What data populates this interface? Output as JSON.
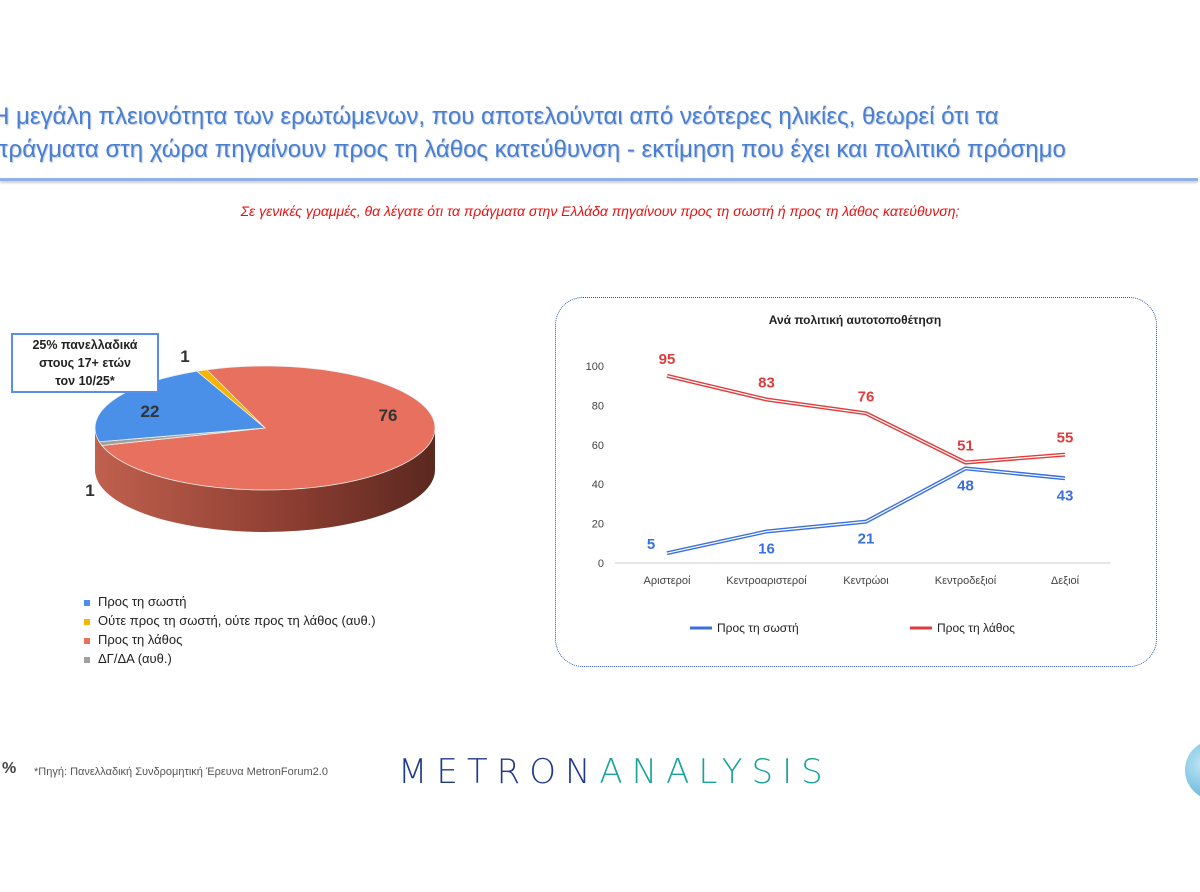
{
  "header": {
    "title_line1": "Η μεγάλη πλειονότητα των ερωτώμενων, που αποτελούνται από νεότερες ηλικίες, θεωρεί ότι τα",
    "title_line2": "πράγματα στη χώρα πηγαίνουν προς τη λάθος κατεύθυνση - εκτίμηση που έχει και πολιτικό πρόσημο",
    "question": "Σε γενικές γραμμές, θα λέγατε ότι τα πράγματα στην Ελλάδα πηγαίνουν προς τη σωστή ή προς τη λάθος κατεύθυνση;"
  },
  "annotation": {
    "line1": "25% πανελλαδικά",
    "line2": "στους 17+ ετών",
    "line3": "τον 10/25*"
  },
  "footer": {
    "source": "*Πηγή: Πανελλαδική Συνδρομητική Έρευνα MetronForum2.0",
    "logo_part1": "METRON",
    "logo_part2": "ANALYSIS",
    "icon": "percent-icon"
  },
  "chart_data": [
    {
      "type": "pie",
      "style": "3d",
      "slices": [
        {
          "label": "Προς τη σωστή",
          "value": 22,
          "color": "#4a8fe8"
        },
        {
          "label": "Ούτε προς τη σωστή, ούτε προς τη λάθος (αυθ.)",
          "value": 1,
          "color": "#f5b400"
        },
        {
          "label": "Προς τη λάθος",
          "value": 76,
          "color": "#e8705e"
        },
        {
          "label": "ΔΓ/ΔΑ (αυθ.)",
          "value": 1,
          "color": "#a0a0a0"
        }
      ],
      "legend": "bottom"
    },
    {
      "type": "line",
      "title": "Ανά πολιτική αυτοτοποθέτηση",
      "categories": [
        "Αριστεροί",
        "Κεντροαριστεροί",
        "Κεντρώοι",
        "Κεντροδεξιοί",
        "Δεξιοί"
      ],
      "ylim": [
        0,
        100
      ],
      "yticks": [
        0,
        20,
        40,
        60,
        80,
        100
      ],
      "grid": false,
      "legend": "bottom",
      "series": [
        {
          "name": "Προς τη σωστή",
          "values": [
            5,
            16,
            21,
            48,
            43
          ],
          "color": "#3a6fe0"
        },
        {
          "name": "Προς τη λάθος",
          "values": [
            95,
            83,
            76,
            51,
            55
          ],
          "color": "#e03c3c"
        }
      ]
    }
  ]
}
